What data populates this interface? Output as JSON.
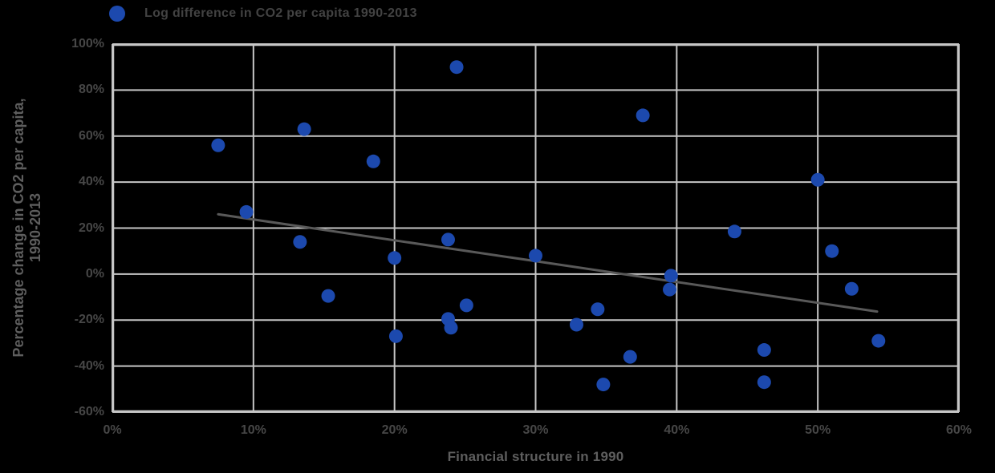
{
  "chart_data": {
    "type": "scatter",
    "legend": "Log difference in CO2 per capita 1990-2013",
    "xlabel": "Financial structure in 1990",
    "ylabel_lines": [
      "Percentage change in CO2 per capita,",
      "1990-2013"
    ],
    "xlim": [
      0,
      60
    ],
    "ylim": [
      -60,
      100
    ],
    "grid": true,
    "legend_position": "top-left",
    "x_ticks": [
      {
        "value": 0,
        "label": "0%"
      },
      {
        "value": 10,
        "label": "10%"
      },
      {
        "value": 20,
        "label": "20%"
      },
      {
        "value": 30,
        "label": "30%"
      },
      {
        "value": 40,
        "label": "40%"
      },
      {
        "value": 50,
        "label": "50%"
      },
      {
        "value": 60,
        "label": "60%"
      }
    ],
    "y_ticks": [
      {
        "value": 100,
        "label": "100%"
      },
      {
        "value": 80,
        "label": "80%"
      },
      {
        "value": 60,
        "label": "60%"
      },
      {
        "value": 40,
        "label": "40%"
      },
      {
        "value": 20,
        "label": "20%"
      },
      {
        "value": 0,
        "label": "0%"
      },
      {
        "value": -20,
        "label": "-20%"
      },
      {
        "value": -40,
        "label": "-40%"
      },
      {
        "value": -60,
        "label": "-60%"
      }
    ],
    "points": [
      [
        24.4,
        90
      ],
      [
        37.6,
        69
      ],
      [
        13.6,
        63
      ],
      [
        7.5,
        56
      ],
      [
        18.5,
        49
      ],
      [
        50,
        41
      ],
      [
        9.5,
        27
      ],
      [
        44.1,
        18.5
      ],
      [
        23.8,
        15
      ],
      [
        13.3,
        14
      ],
      [
        51,
        10
      ],
      [
        30,
        8
      ],
      [
        20,
        7
      ],
      [
        39.6,
        -0.7
      ],
      [
        52.4,
        -6.4
      ],
      [
        39.5,
        -6.7
      ],
      [
        15.3,
        -9.5
      ],
      [
        25.1,
        -13.6
      ],
      [
        34.4,
        -15.3
      ],
      [
        23.8,
        -19.5
      ],
      [
        32.9,
        -22
      ],
      [
        24,
        -23.3
      ],
      [
        20.1,
        -27
      ],
      [
        54.3,
        -29
      ],
      [
        46.2,
        -33
      ],
      [
        36.7,
        -36
      ],
      [
        46.2,
        -47
      ],
      [
        34.8,
        -48
      ]
    ],
    "trendline": {
      "x1": 7.5,
      "y1": 26,
      "x2": 54.2,
      "y2": -16.3
    },
    "colors": {
      "point": "#1c49ae",
      "trend": "#595959",
      "grid": "#c6c6c6",
      "background": "#000000",
      "tick_text": "#474747",
      "axis_title_text": "#5e5e5e",
      "legend_text": "#424242"
    }
  }
}
